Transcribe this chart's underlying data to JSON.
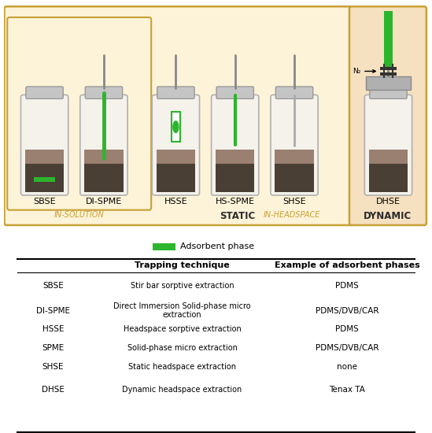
{
  "bg_color": "#ffffff",
  "top_panel_bg": "#fdf3d8",
  "top_panel_border": "#c8a035",
  "dynamic_bg": "#f5e0c0",
  "dynamic_border": "#c8a035",
  "green_color": "#2db52d",
  "labels": [
    "SBSE",
    "DI-SPME",
    "HSSE",
    "HS-SPME",
    "SHSE",
    "DHSE"
  ],
  "legend_label": "Adsorbent phase",
  "table_headers": [
    "Trapping technique",
    "Example of adsorbent phases"
  ],
  "table_abbrev": [
    "SBSE",
    "DI-SPME",
    "HSSE",
    "SPME",
    "SHSE",
    "DHSE"
  ],
  "table_techniques": [
    "Stir bar sorptive extraction",
    "Direct Immersion Solid-phase micro\nextraction",
    "Headspace sorptive extraction",
    "Solid-phase micro extraction",
    "Static headspace extraction",
    "Dynamic headspace extraction"
  ],
  "table_adsorbents": [
    "PDMS",
    "PDMS/DVB/CAR",
    "PDMS",
    "PDMS/DVB/CAR",
    "none",
    "Tenax TA"
  ]
}
